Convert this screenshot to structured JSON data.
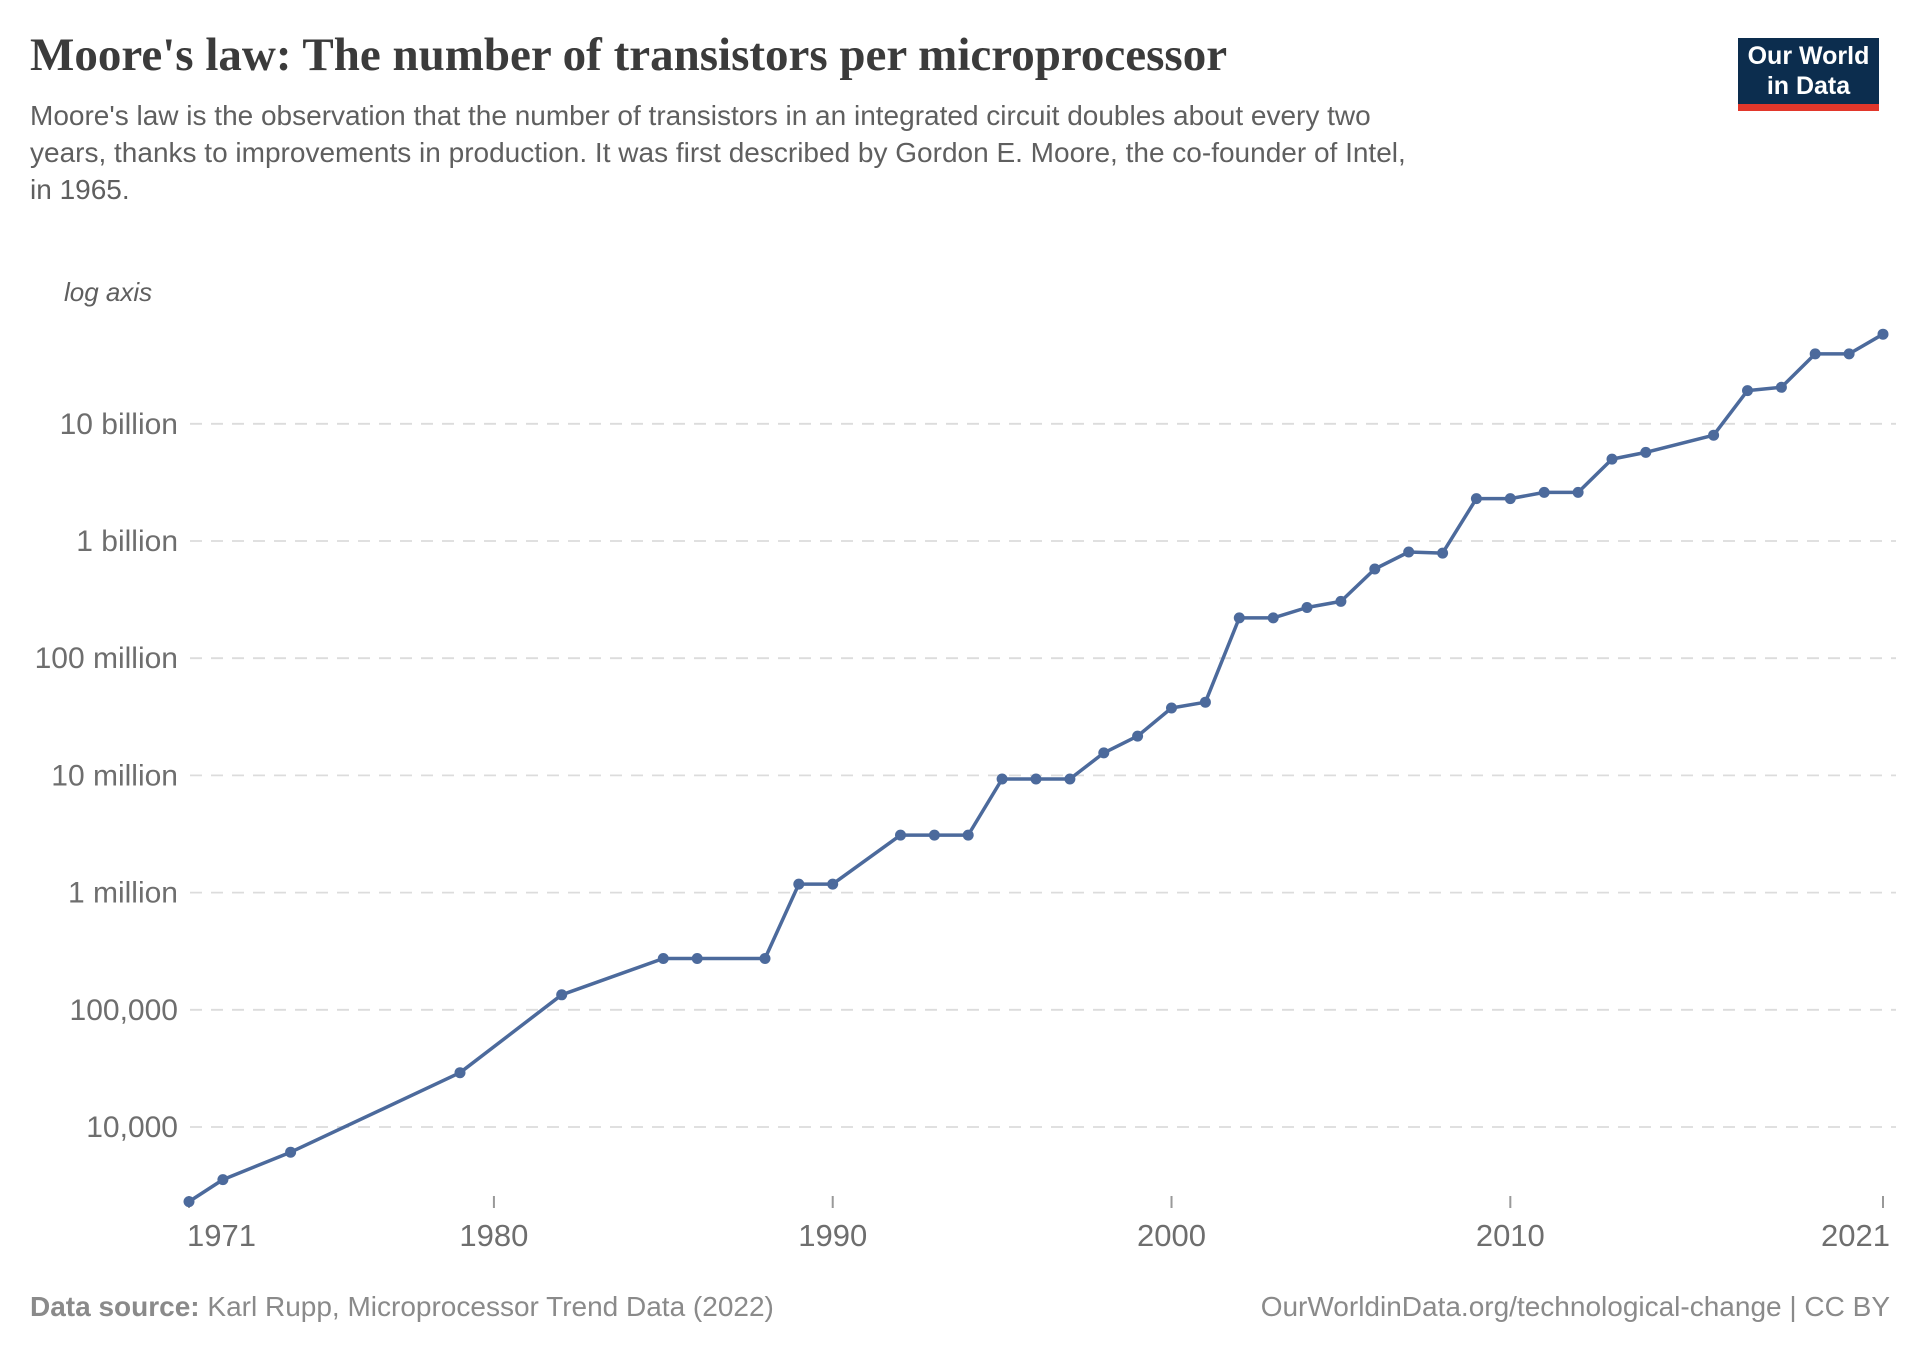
{
  "header": {
    "title": "Moore's law: The number of transistors per microprocessor",
    "subtitle_lines": [
      "Moore's law is the observation that the number of transistors in an integrated circuit doubles about every two",
      "years, thanks to improvements in production. It was first described by Gordon E. Moore, the co-founder of Intel,",
      "in 1965."
    ],
    "logo": {
      "line1": "Our World",
      "line2": "in Data"
    }
  },
  "chart_data": {
    "type": "line",
    "title": "Moore's law: The number of transistors per microprocessor",
    "log_axis_note": "log axis",
    "grid": "horizontal dashed",
    "legend_position": "none",
    "line_color": "#4C6A9C",
    "grid_color": "#dcdcdc",
    "label_color": "#6e6e6e",
    "x_axis": {
      "ticks": [
        "1971",
        "1980",
        "1990",
        "2000",
        "2010",
        "2021"
      ],
      "domain": [
        1971,
        2021
      ]
    },
    "y_axis": {
      "scale": "log",
      "ylim": [
        2000,
        70000000000
      ],
      "ticks": [
        {
          "label": "10,000",
          "value": 10000
        },
        {
          "label": "100,000",
          "value": 100000
        },
        {
          "label": "1 million",
          "value": 1000000
        },
        {
          "label": "10 million",
          "value": 10000000
        },
        {
          "label": "100 million",
          "value": 100000000
        },
        {
          "label": "1 billion",
          "value": 1000000000
        },
        {
          "label": "10 billion",
          "value": 10000000000
        }
      ]
    },
    "series": [
      {
        "name": "Transistors per microprocessor",
        "points": [
          {
            "year": 1971,
            "value": 2308
          },
          {
            "year": 1972,
            "value": 3555
          },
          {
            "year": 1974,
            "value": 6098
          },
          {
            "year": 1979,
            "value": 29056
          },
          {
            "year": 1982,
            "value": 134279
          },
          {
            "year": 1985,
            "value": 273842
          },
          {
            "year": 1986,
            "value": 273842
          },
          {
            "year": 1988,
            "value": 273842
          },
          {
            "year": 1989,
            "value": 1181242
          },
          {
            "year": 1990,
            "value": 1181242
          },
          {
            "year": 1992,
            "value": 3096603
          },
          {
            "year": 1993,
            "value": 3096603
          },
          {
            "year": 1994,
            "value": 3096603
          },
          {
            "year": 1995,
            "value": 9320106
          },
          {
            "year": 1996,
            "value": 9320106
          },
          {
            "year": 1997,
            "value": 9320106
          },
          {
            "year": 1998,
            "value": 15571543
          },
          {
            "year": 1999,
            "value": 21641107
          },
          {
            "year": 2000,
            "value": 37566026
          },
          {
            "year": 2001,
            "value": 42150000
          },
          {
            "year": 2002,
            "value": 220902222
          },
          {
            "year": 2003,
            "value": 220902222
          },
          {
            "year": 2004,
            "value": 271000000
          },
          {
            "year": 2005,
            "value": 305000000
          },
          {
            "year": 2006,
            "value": 577000000
          },
          {
            "year": 2007,
            "value": 805000000
          },
          {
            "year": 2008,
            "value": 789000000
          },
          {
            "year": 2009,
            "value": 2300000000
          },
          {
            "year": 2010,
            "value": 2300000000
          },
          {
            "year": 2011,
            "value": 2600000000
          },
          {
            "year": 2012,
            "value": 2600000000
          },
          {
            "year": 2013,
            "value": 5000000000
          },
          {
            "year": 2014,
            "value": 5700000000
          },
          {
            "year": 2016,
            "value": 8000000000
          },
          {
            "year": 2017,
            "value": 19200000000
          },
          {
            "year": 2018,
            "value": 20500000000
          },
          {
            "year": 2019,
            "value": 39500000000
          },
          {
            "year": 2020,
            "value": 39500000000
          },
          {
            "year": 2021,
            "value": 58200000000
          }
        ]
      }
    ]
  },
  "footer": {
    "source_label": "Data source:",
    "source_text": " Karl Rupp, Microprocessor Trend Data (2022)",
    "credit": "OurWorldinData.org/technological-change | CC BY"
  }
}
